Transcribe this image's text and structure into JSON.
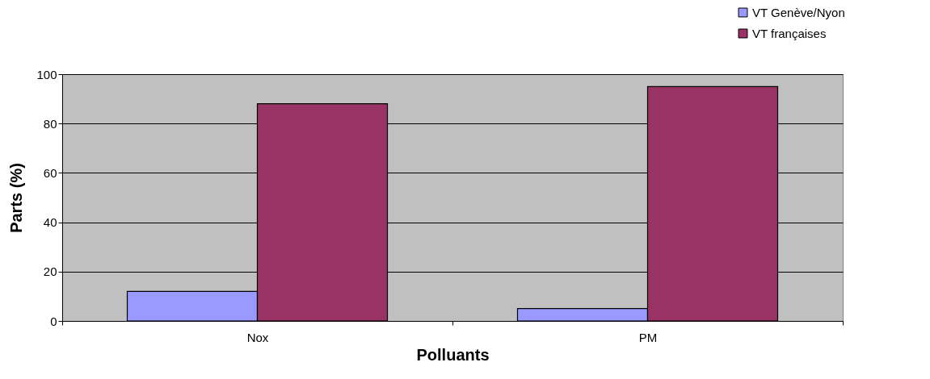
{
  "chart_data": {
    "type": "bar",
    "xlabel": "Polluants",
    "ylabel": "Parts (%)",
    "categories": [
      "Nox",
      "PM"
    ],
    "series": [
      {
        "name": "VT Genève/Nyon",
        "color": "#9999ff",
        "values": [
          12,
          5
        ]
      },
      {
        "name": "VT françaises",
        "color": "#993366",
        "values": [
          88,
          95
        ]
      }
    ],
    "ylim": [
      0,
      100
    ],
    "yticks": [
      0,
      20,
      40,
      60,
      80,
      100
    ],
    "grid": "y",
    "legend": "top right"
  }
}
